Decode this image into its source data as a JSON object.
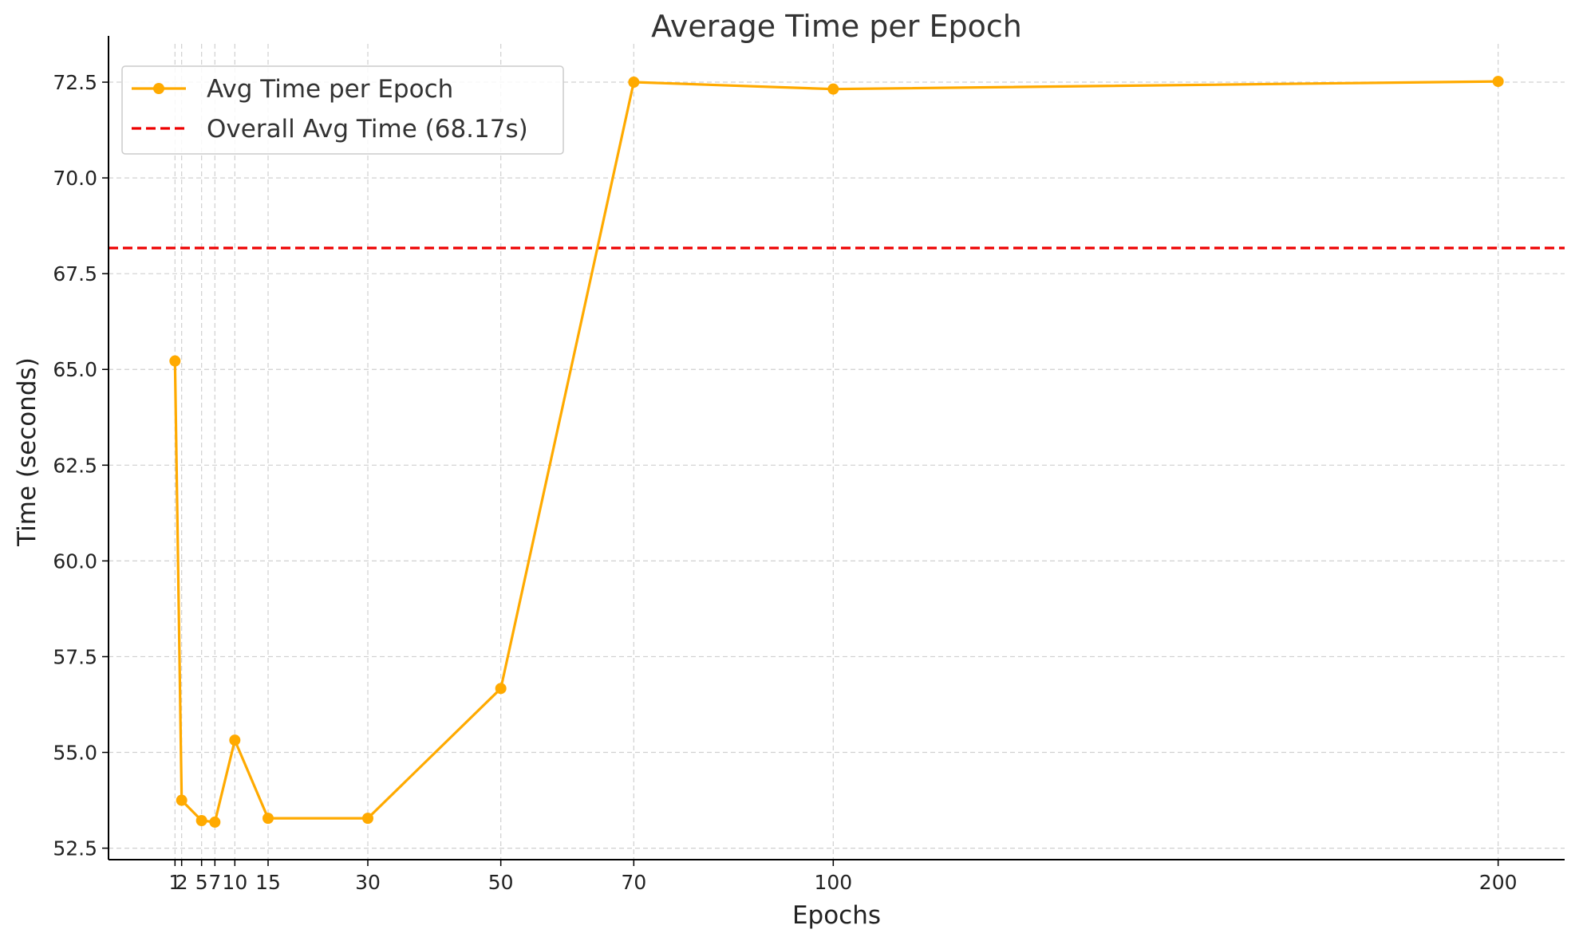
{
  "chart_data": {
    "type": "line",
    "title": "Average Time per Epoch",
    "xlabel": "Epochs",
    "ylabel": "Time (seconds)",
    "x": [
      1,
      2,
      5,
      7,
      10,
      15,
      30,
      50,
      70,
      100,
      200
    ],
    "x_tick_labels": [
      "1",
      "2",
      "5",
      "7",
      "10",
      "15",
      "30",
      "50",
      "70",
      "100",
      "200"
    ],
    "y_ticks": [
      52.5,
      55.0,
      57.5,
      60.0,
      62.5,
      65.0,
      67.5,
      70.0,
      72.5
    ],
    "y_tick_labels": [
      "52.5",
      "55.0",
      "57.5",
      "60.0",
      "62.5",
      "65.0",
      "67.5",
      "70.0",
      "72.5"
    ],
    "xlim": [
      -9,
      210
    ],
    "ylim": [
      52.2,
      73.5
    ],
    "series": [
      {
        "name": "Avg Time per Epoch",
        "color": "#FFAA00",
        "marker": "circle",
        "values": [
          65.22,
          53.75,
          53.22,
          53.18,
          55.32,
          53.28,
          53.28,
          56.67,
          72.5,
          72.32,
          72.52
        ]
      }
    ],
    "reference_lines": [
      {
        "name": "Overall Avg Time (68.17s)",
        "value": 68.17,
        "color": "#EE0000",
        "style": "dashed"
      }
    ],
    "grid": true,
    "legend_position": "top-left"
  }
}
